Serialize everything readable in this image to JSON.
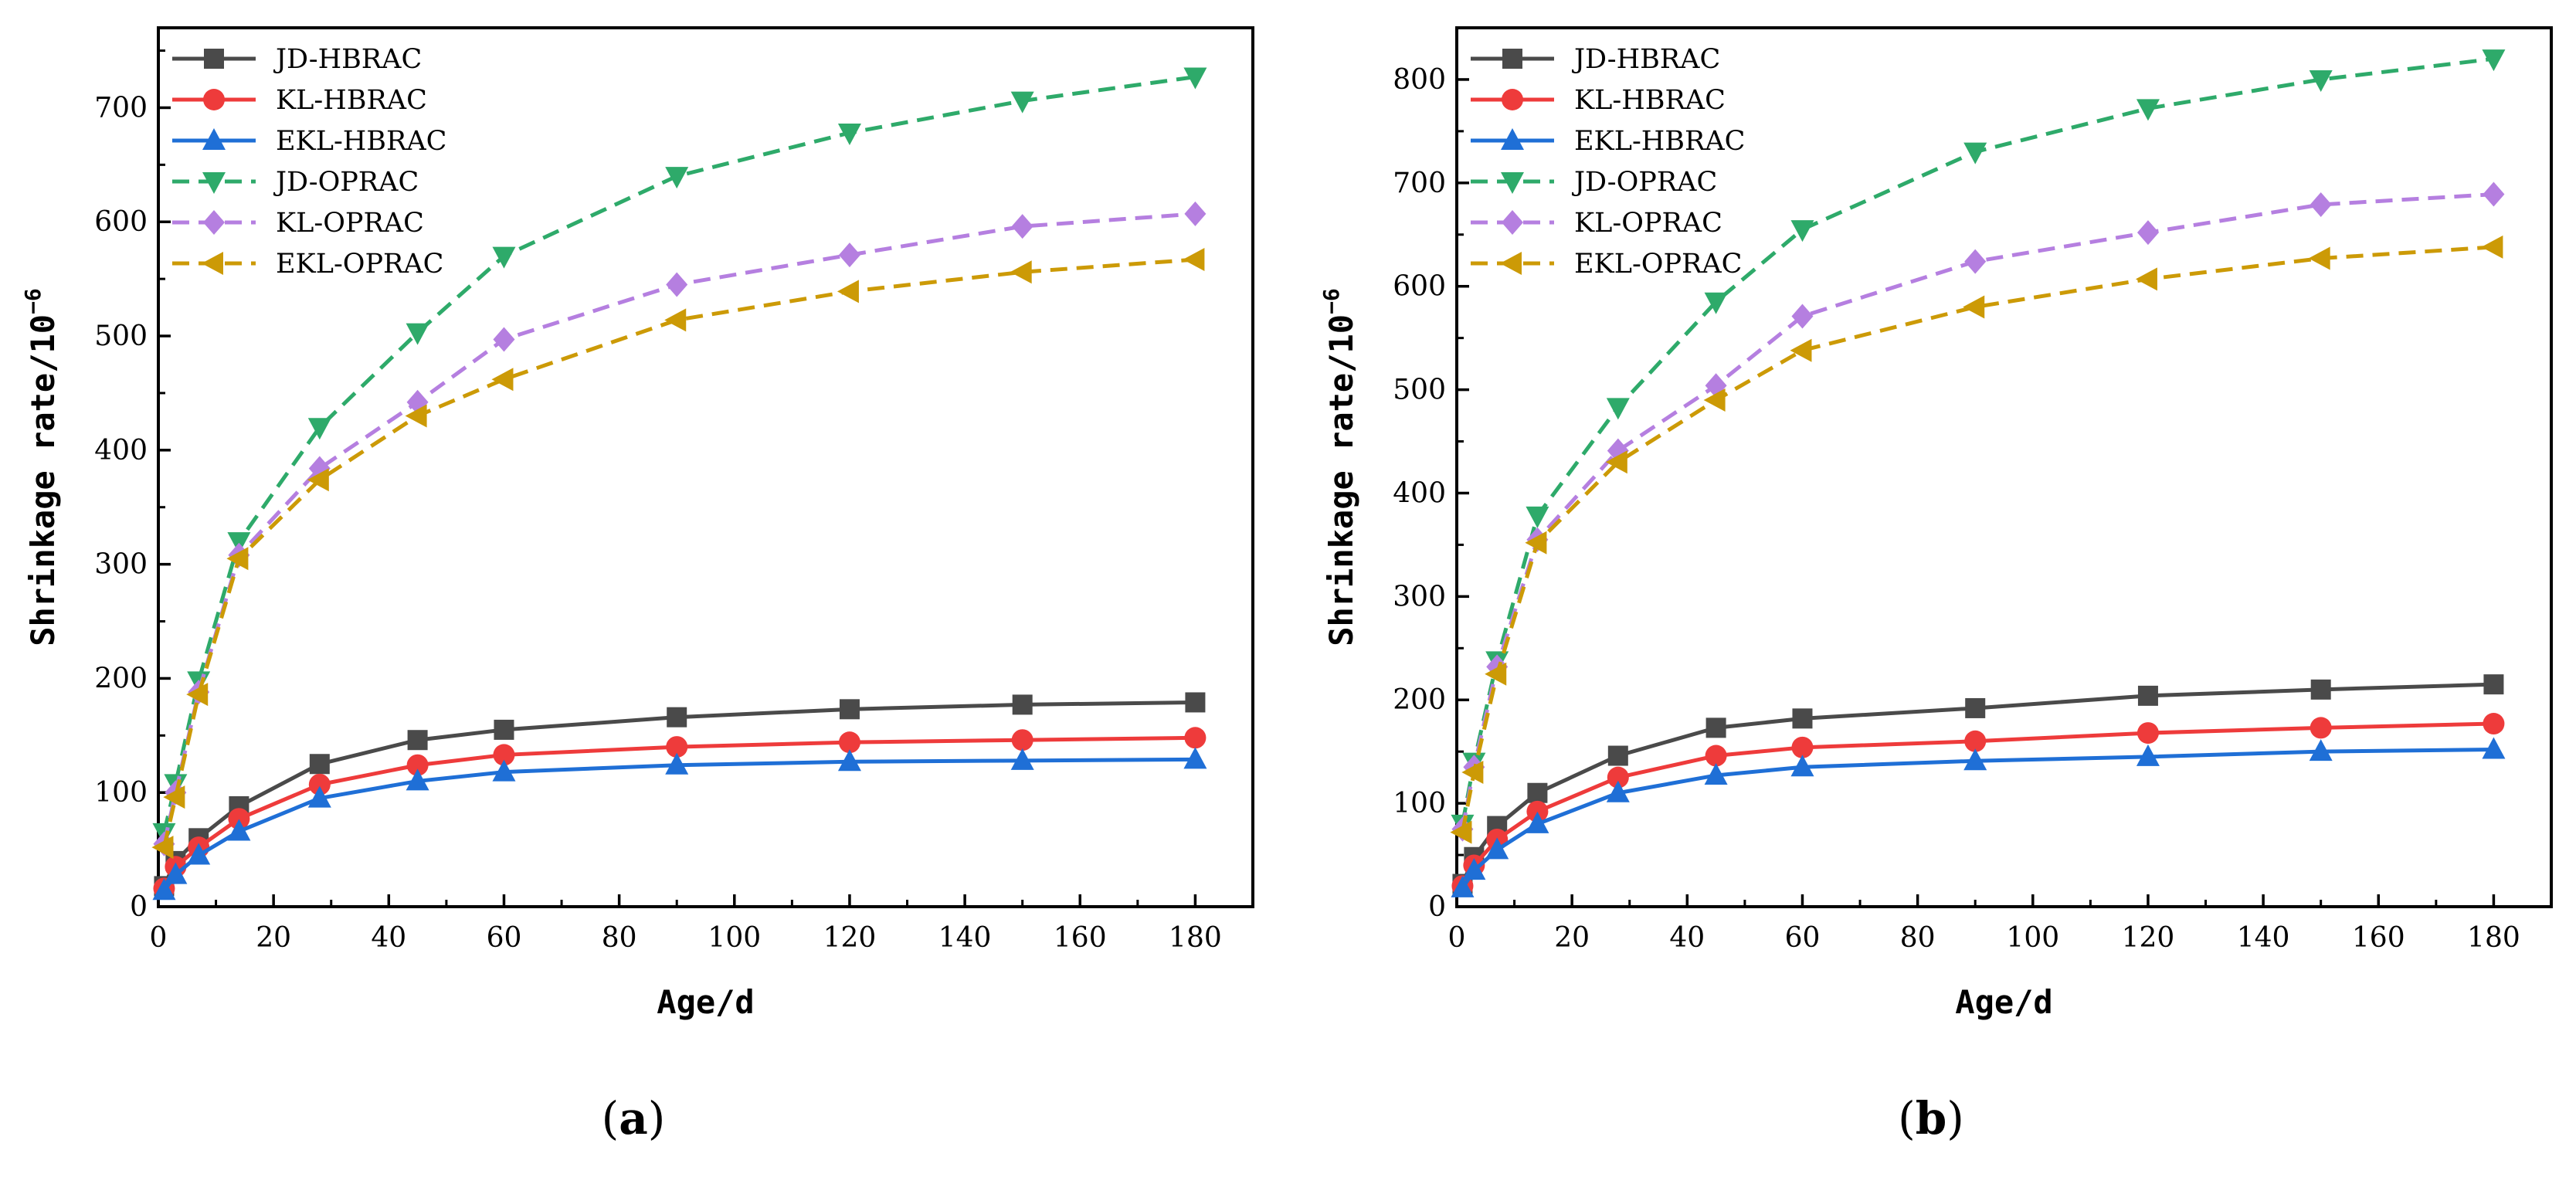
{
  "chart_data": [
    {
      "type": "line",
      "panel": "(a)",
      "panel_letter": "a",
      "xlabel": "Age/d",
      "ylabel_main": "Shrinkage rate/10",
      "ylabel_exp": "−6",
      "xlim": [
        0,
        190
      ],
      "ylim": [
        0,
        770
      ],
      "xticks": [
        0,
        20,
        40,
        60,
        80,
        100,
        120,
        140,
        160,
        180
      ],
      "yticks": [
        0,
        100,
        200,
        300,
        400,
        500,
        600,
        700
      ],
      "x": [
        1,
        3,
        7,
        14,
        28,
        45,
        60,
        90,
        120,
        150,
        180
      ],
      "series": [
        {
          "name": "JD-HBRAC",
          "color": "#4a4a4a",
          "marker": "square",
          "dash": "solid",
          "values": [
            18,
            40,
            60,
            88,
            125,
            146,
            155,
            166,
            173,
            177,
            179
          ]
        },
        {
          "name": "KL-HBRAC",
          "color": "#ee3b3b",
          "marker": "circle",
          "dash": "solid",
          "values": [
            16,
            35,
            52,
            77,
            107,
            124,
            133,
            140,
            144,
            146,
            148
          ]
        },
        {
          "name": "EKL-HBRAC",
          "color": "#1f6fd6",
          "marker": "triangle-up",
          "dash": "solid",
          "values": [
            14,
            28,
            45,
            66,
            95,
            110,
            118,
            124,
            127,
            128,
            129
          ]
        },
        {
          "name": "JD-OPRAC",
          "color": "#2eaa6a",
          "marker": "triangle-down",
          "dash": "dashed",
          "values": [
            65,
            108,
            198,
            320,
            420,
            503,
            570,
            640,
            678,
            706,
            727
          ]
        },
        {
          "name": "KL-OPRAC",
          "color": "#b57fe0",
          "marker": "diamond",
          "dash": "dashed",
          "values": [
            55,
            100,
            188,
            308,
            384,
            442,
            497,
            545,
            571,
            596,
            607
          ]
        },
        {
          "name": "EKL-OPRAC",
          "color": "#cc9a06",
          "marker": "triangle-left",
          "dash": "dashed",
          "values": [
            52,
            96,
            186,
            305,
            374,
            430,
            462,
            514,
            539,
            556,
            567
          ]
        }
      ]
    },
    {
      "type": "line",
      "panel": "(b)",
      "panel_letter": "b",
      "xlabel": "Age/d",
      "ylabel_main": "Shrinkage rate/10",
      "ylabel_exp": "−6",
      "xlim": [
        0,
        190
      ],
      "ylim": [
        0,
        850
      ],
      "xticks": [
        0,
        20,
        40,
        60,
        80,
        100,
        120,
        140,
        160,
        180
      ],
      "yticks": [
        0,
        100,
        200,
        300,
        400,
        500,
        600,
        700,
        800
      ],
      "x": [
        1,
        3,
        7,
        14,
        28,
        45,
        60,
        90,
        120,
        150,
        180
      ],
      "series": [
        {
          "name": "JD-HBRAC",
          "color": "#4a4a4a",
          "marker": "square",
          "dash": "solid",
          "values": [
            22,
            48,
            78,
            110,
            146,
            173,
            182,
            192,
            204,
            210,
            215
          ]
        },
        {
          "name": "KL-HBRAC",
          "color": "#ee3b3b",
          "marker": "circle",
          "dash": "solid",
          "values": [
            20,
            40,
            65,
            92,
            125,
            146,
            154,
            160,
            168,
            173,
            177
          ]
        },
        {
          "name": "EKL-HBRAC",
          "color": "#1f6fd6",
          "marker": "triangle-up",
          "dash": "solid",
          "values": [
            18,
            35,
            55,
            80,
            110,
            127,
            135,
            141,
            145,
            150,
            152
          ]
        },
        {
          "name": "JD-OPRAC",
          "color": "#2eaa6a",
          "marker": "triangle-down",
          "dash": "dashed",
          "values": [
            80,
            140,
            238,
            378,
            483,
            585,
            655,
            730,
            772,
            800,
            820
          ]
        },
        {
          "name": "KL-OPRAC",
          "color": "#b57fe0",
          "marker": "diamond",
          "dash": "dashed",
          "values": [
            75,
            135,
            232,
            355,
            441,
            504,
            571,
            624,
            652,
            679,
            689
          ]
        },
        {
          "name": "EKL-OPRAC",
          "color": "#cc9a06",
          "marker": "triangle-left",
          "dash": "dashed",
          "values": [
            72,
            130,
            225,
            352,
            430,
            490,
            538,
            580,
            607,
            627,
            638
          ]
        }
      ]
    }
  ]
}
